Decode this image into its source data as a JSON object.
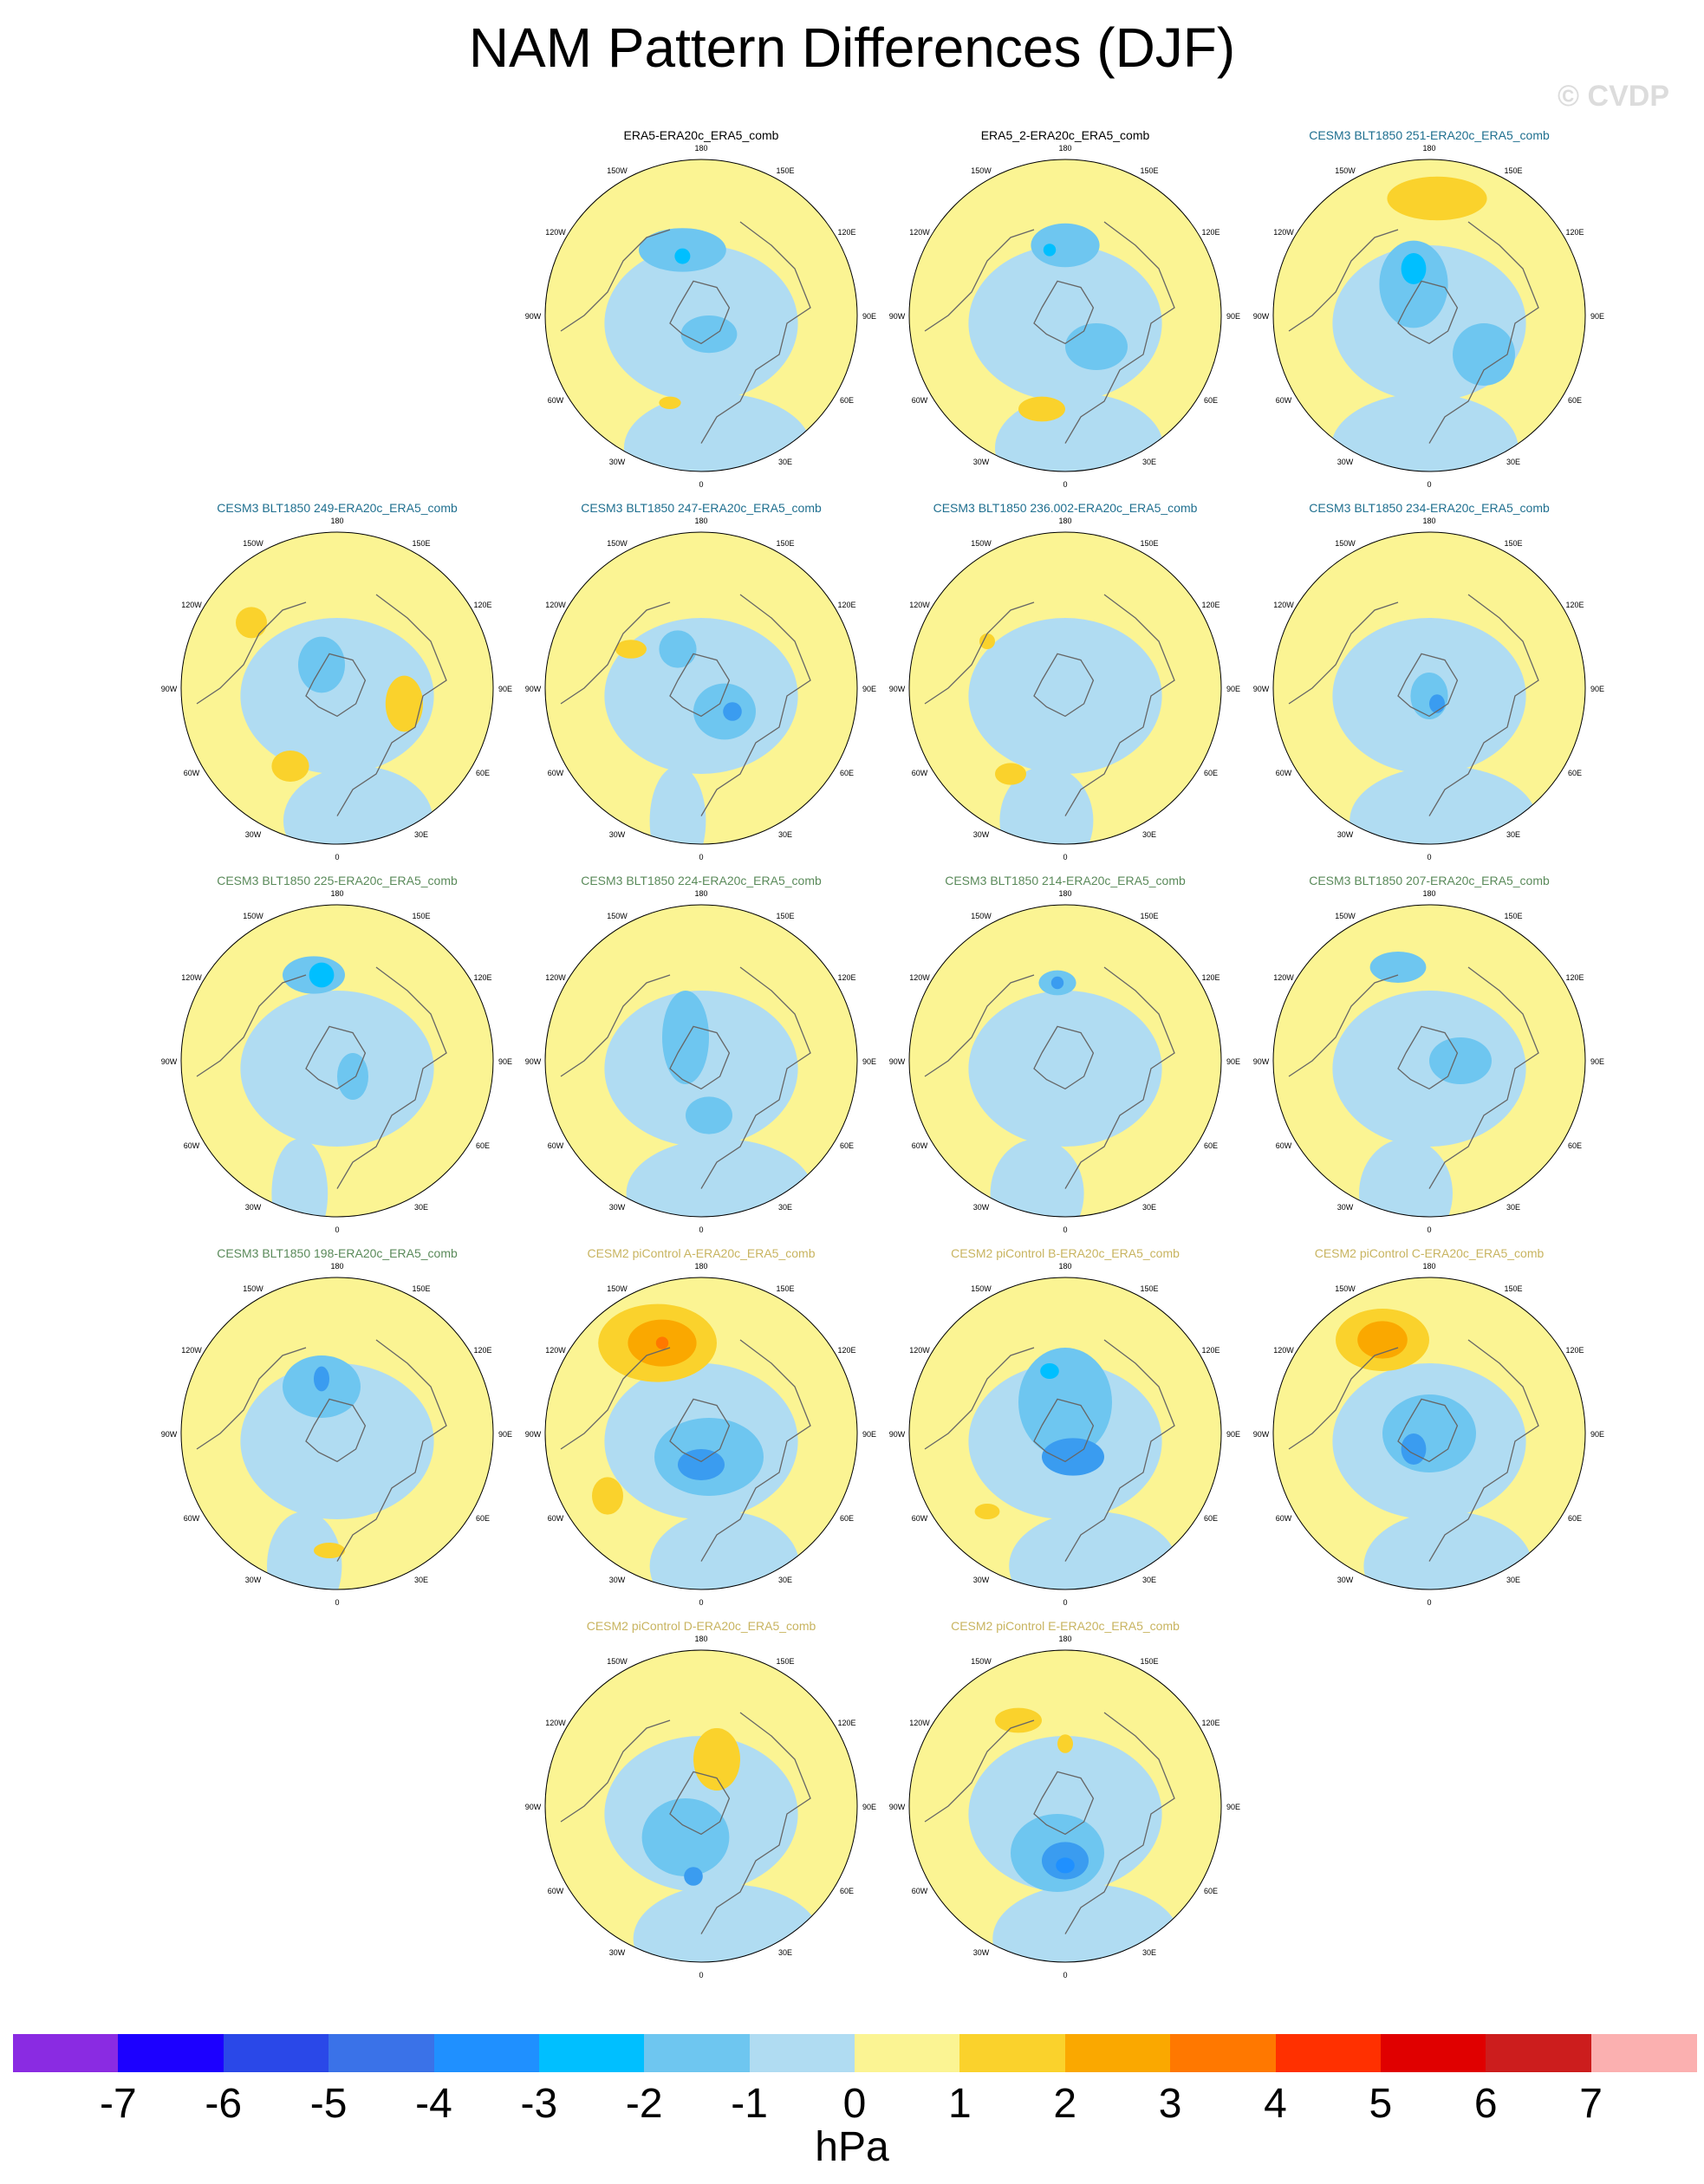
{
  "title": "NAM Pattern Differences (DJF)",
  "watermark": "© CVDP",
  "units": "hPa",
  "longitude_labels": [
    "180",
    "150E",
    "120E",
    "90E",
    "60E",
    "30E",
    "0",
    "30W",
    "60W",
    "90W",
    "120W",
    "150W"
  ],
  "colorbar": {
    "colors": [
      "#8a2be2",
      "#1c00ff",
      "#2a48e8",
      "#3a72e8",
      "#1f90ff",
      "#00bfff",
      "#6ec6f0",
      "#b0dcf2",
      "#fbf493",
      "#fad22c",
      "#faa800",
      "#ff7800",
      "#ff3000",
      "#e00000",
      "#cc1d1d",
      "#fbb0b0"
    ],
    "tick_labels": [
      "-7",
      "-6",
      "-5",
      "-4",
      "-3",
      "-2",
      "-1",
      "0",
      "1",
      "2",
      "3",
      "4",
      "5",
      "6",
      "7"
    ]
  },
  "panels": [
    {
      "title": "ERA5-ERA20c_ERA5_comb",
      "title_color": "#000000",
      "blobs": [
        [
          "#6ec6f0",
          -0.12,
          -0.42,
          0.28,
          0.14
        ],
        [
          "#00bfff",
          -0.12,
          -0.38,
          0.05,
          0.05
        ],
        [
          "#6ec6f0",
          0.05,
          0.12,
          0.18,
          0.12
        ],
        [
          "#fad22c",
          -0.2,
          0.56,
          0.07,
          0.04
        ]
      ],
      "lowband": [
        0.35,
        1.0
      ]
    },
    {
      "title": "ERA5_2-ERA20c_ERA5_comb",
      "title_color": "#000000",
      "blobs": [
        [
          "#6ec6f0",
          0.0,
          -0.45,
          0.22,
          0.14
        ],
        [
          "#00bfff",
          -0.1,
          -0.42,
          0.04,
          0.04
        ],
        [
          "#6ec6f0",
          0.2,
          0.2,
          0.2,
          0.15
        ],
        [
          "#fad22c",
          -0.15,
          0.6,
          0.15,
          0.08
        ]
      ],
      "lowband": [
        0.3,
        0.9
      ]
    },
    {
      "title": "CESM3 BLT1850 251-ERA20c_ERA5_comb",
      "title_color": "#1f6f8f",
      "blobs": [
        [
          "#fad22c",
          0.05,
          -0.75,
          0.32,
          0.14
        ],
        [
          "#6ec6f0",
          -0.1,
          -0.2,
          0.22,
          0.28
        ],
        [
          "#00bfff",
          -0.1,
          -0.3,
          0.08,
          0.1
        ],
        [
          "#6ec6f0",
          0.35,
          0.25,
          0.2,
          0.2
        ]
      ],
      "lowband": [
        -0.1,
        1.0
      ]
    },
    {
      "title": "CESM3 BLT1850 249-ERA20c_ERA5_comb",
      "title_color": "#1f6f8f",
      "blobs": [
        [
          "#fad22c",
          -0.55,
          -0.42,
          0.1,
          0.1
        ],
        [
          "#fad22c",
          0.43,
          0.1,
          0.12,
          0.18
        ],
        [
          "#fad22c",
          -0.3,
          0.5,
          0.12,
          0.1
        ],
        [
          "#6ec6f0",
          -0.1,
          -0.15,
          0.15,
          0.18
        ]
      ],
      "lowband": [
        0.45,
        0.8
      ]
    },
    {
      "title": "CESM3 BLT1850 247-ERA20c_ERA5_comb",
      "title_color": "#1f6f8f",
      "blobs": [
        [
          "#6ec6f0",
          0.15,
          0.15,
          0.2,
          0.18
        ],
        [
          "#3a9cf0",
          0.2,
          0.15,
          0.06,
          0.06
        ],
        [
          "#fad22c",
          -0.45,
          -0.25,
          0.1,
          0.06
        ],
        [
          "#6ec6f0",
          -0.15,
          -0.25,
          0.12,
          0.12
        ]
      ],
      "lowband": [
        -0.5,
        0.3
      ]
    },
    {
      "title": "CESM3 BLT1850 236.002-ERA20c_ERA5_comb",
      "title_color": "#1f6f8f",
      "blobs": [
        [
          "#fad22c",
          -0.35,
          0.55,
          0.1,
          0.07
        ],
        [
          "#fad22c",
          -0.5,
          -0.3,
          0.05,
          0.05
        ]
      ],
      "lowband": [
        -0.4,
        0.5
      ]
    },
    {
      "title": "CESM3 BLT1850 234-ERA20c_ERA5_comb",
      "title_color": "#1f6f8f",
      "blobs": [
        [
          "#6ec6f0",
          0.0,
          0.05,
          0.12,
          0.15
        ],
        [
          "#3a9cf0",
          0.05,
          0.1,
          0.05,
          0.06
        ]
      ],
      "lowband": [
        0.3,
        1.0
      ]
    },
    {
      "title": "CESM3 BLT1850 225-ERA20c_ERA5_comb",
      "title_color": "#5a8a5a",
      "blobs": [
        [
          "#6ec6f0",
          -0.15,
          -0.55,
          0.2,
          0.12
        ],
        [
          "#00bfff",
          -0.1,
          -0.55,
          0.08,
          0.08
        ],
        [
          "#6ec6f0",
          0.1,
          0.1,
          0.1,
          0.15
        ]
      ],
      "lowband": [
        -0.8,
        0.3
      ]
    },
    {
      "title": "CESM3 BLT1850 224-ERA20c_ERA5_comb",
      "title_color": "#5a8a5a",
      "blobs": [
        [
          "#6ec6f0",
          -0.1,
          -0.15,
          0.15,
          0.3
        ],
        [
          "#6ec6f0",
          0.05,
          0.35,
          0.15,
          0.12
        ]
      ],
      "lowband": [
        0.4,
        1.0
      ]
    },
    {
      "title": "CESM3 BLT1850 214-ERA20c_ERA5_comb",
      "title_color": "#5a8a5a",
      "blobs": [
        [
          "#6ec6f0",
          -0.05,
          -0.5,
          0.12,
          0.08
        ],
        [
          "#3a9cf0",
          -0.05,
          -0.5,
          0.04,
          0.04
        ]
      ],
      "lowband": [
        -0.6,
        0.5
      ]
    },
    {
      "title": "CESM3 BLT1850 207-ERA20c_ERA5_comb",
      "title_color": "#5a8a5a",
      "blobs": [
        [
          "#6ec6f0",
          -0.2,
          -0.6,
          0.18,
          0.1
        ],
        [
          "#6ec6f0",
          0.2,
          0.0,
          0.2,
          0.15
        ]
      ],
      "lowband": [
        -0.5,
        0.5
      ]
    },
    {
      "title": "CESM3 BLT1850 198-ERA20c_ERA5_comb",
      "title_color": "#5a8a5a",
      "blobs": [
        [
          "#6ec6f0",
          -0.1,
          -0.3,
          0.25,
          0.2
        ],
        [
          "#3a9cf0",
          -0.1,
          -0.35,
          0.05,
          0.08
        ],
        [
          "#fad22c",
          -0.05,
          0.75,
          0.1,
          0.05
        ]
      ],
      "lowband": [
        -0.7,
        0.4
      ]
    },
    {
      "title": "CESM2 piControl A-ERA20c_ERA5_comb",
      "title_color": "#c8b460",
      "blobs": [
        [
          "#fad22c",
          -0.28,
          -0.58,
          0.38,
          0.25
        ],
        [
          "#faa800",
          -0.25,
          -0.58,
          0.22,
          0.15
        ],
        [
          "#ff7800",
          -0.25,
          -0.58,
          0.04,
          0.04
        ],
        [
          "#6ec6f0",
          0.05,
          0.15,
          0.35,
          0.25
        ],
        [
          "#3a9cf0",
          0.0,
          0.2,
          0.15,
          0.1
        ],
        [
          "#fad22c",
          -0.6,
          0.4,
          0.1,
          0.12
        ]
      ],
      "lowband": [
        0.5,
        0.8
      ]
    },
    {
      "title": "CESM2 piControl B-ERA20c_ERA5_comb",
      "title_color": "#c8b460",
      "blobs": [
        [
          "#6ec6f0",
          0.0,
          -0.2,
          0.3,
          0.35
        ],
        [
          "#3a9cf0",
          0.05,
          0.15,
          0.2,
          0.12
        ],
        [
          "#00bfff",
          -0.1,
          -0.4,
          0.06,
          0.05
        ],
        [
          "#fad22c",
          -0.5,
          0.5,
          0.08,
          0.05
        ]
      ],
      "lowband": [
        0.6,
        0.9
      ]
    },
    {
      "title": "CESM2 piControl C-ERA20c_ERA5_comb",
      "title_color": "#c8b460",
      "blobs": [
        [
          "#fad22c",
          -0.3,
          -0.6,
          0.3,
          0.2
        ],
        [
          "#faa800",
          -0.3,
          -0.6,
          0.16,
          0.12
        ],
        [
          "#6ec6f0",
          0.0,
          0.0,
          0.3,
          0.25
        ],
        [
          "#3a9cf0",
          -0.1,
          0.1,
          0.08,
          0.1
        ]
      ],
      "lowband": [
        0.4,
        0.9
      ]
    },
    {
      "title": "CESM2 piControl D-ERA20c_ERA5_comb",
      "title_color": "#c8b460",
      "blobs": [
        [
          "#fad22c",
          0.1,
          -0.3,
          0.15,
          0.2
        ],
        [
          "#6ec6f0",
          -0.1,
          0.2,
          0.28,
          0.25
        ],
        [
          "#3a9cf0",
          -0.05,
          0.45,
          0.06,
          0.06
        ]
      ],
      "lowband": [
        0.55,
        1.0
      ]
    },
    {
      "title": "CESM2 piControl E-ERA20c_ERA5_comb",
      "title_color": "#c8b460",
      "blobs": [
        [
          "#fad22c",
          -0.3,
          -0.55,
          0.15,
          0.08
        ],
        [
          "#6ec6f0",
          -0.05,
          0.3,
          0.3,
          0.25
        ],
        [
          "#3a9cf0",
          0.0,
          0.35,
          0.15,
          0.12
        ],
        [
          "#1f90ff",
          0.0,
          0.38,
          0.06,
          0.05
        ],
        [
          "#fad22c",
          0.0,
          -0.4,
          0.05,
          0.06
        ]
      ],
      "lowband": [
        0.45,
        1.0
      ]
    }
  ]
}
